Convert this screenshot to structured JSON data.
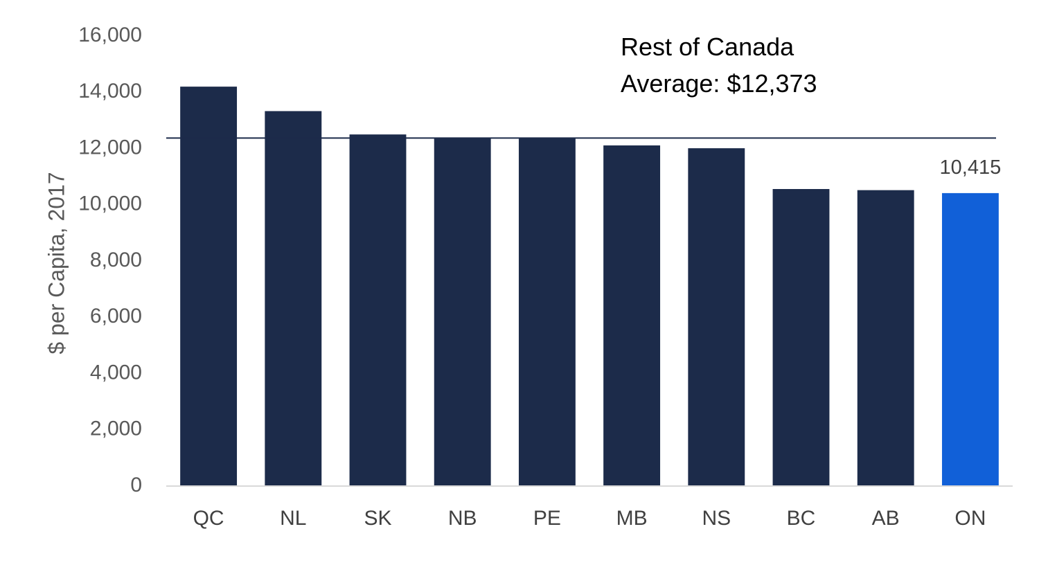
{
  "chart_data": {
    "type": "bar",
    "categories": [
      "QC",
      "NL",
      "SK",
      "NB",
      "PE",
      "MB",
      "NS",
      "BC",
      "AB",
      "ON"
    ],
    "values": [
      14200,
      13330,
      12500,
      12390,
      12390,
      12110,
      12010,
      10560,
      10520,
      10415
    ],
    "ylabel": "$ per Capita, 2017",
    "ylim": [
      0,
      16000
    ],
    "yticks": [
      0,
      2000,
      4000,
      6000,
      8000,
      10000,
      12000,
      14000,
      16000
    ],
    "ytick_labels": [
      "0",
      "2,000",
      "4,000",
      "6,000",
      "8,000",
      "10,000",
      "12,000",
      "14,000",
      "16,000"
    ],
    "grid": false,
    "legend": "none",
    "reference_line": {
      "value": 12373,
      "label_line1": "Rest of Canada",
      "label_line2": "Average: $12,373"
    },
    "highlight": {
      "category": "ON",
      "data_label": "10,415"
    },
    "colors": {
      "bar": "#1c2b4a",
      "highlight": "#1160d8",
      "axis": "#d9d9d9",
      "reference": "#1c2b4a"
    }
  }
}
